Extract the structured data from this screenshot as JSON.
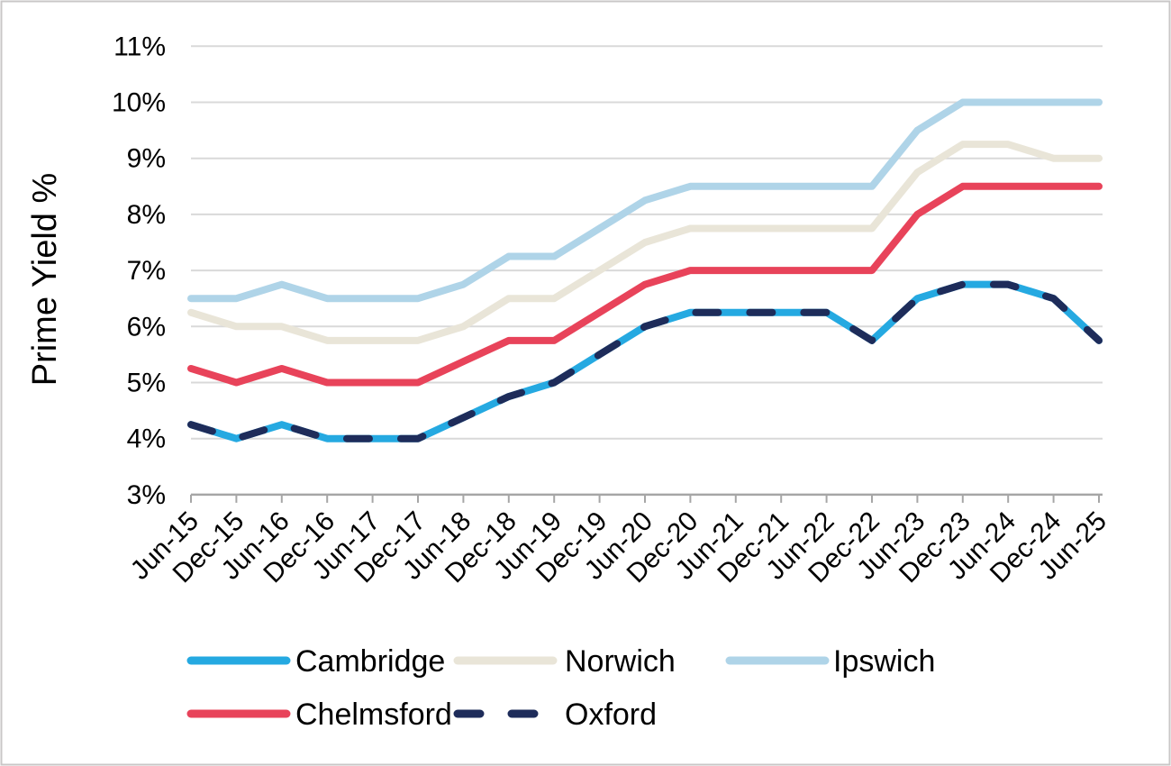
{
  "chart_data": {
    "type": "line",
    "title": "",
    "ylabel": "Prime Yield %",
    "xlabel": "",
    "ylim": [
      3,
      11
    ],
    "ytick_step": 1,
    "grid": "horizontal",
    "legend_position": "bottom",
    "categories": [
      "Jun-15",
      "Dec-15",
      "Jun-16",
      "Dec-16",
      "Jun-17",
      "Dec-17",
      "Jun-18",
      "Dec-18",
      "Jun-19",
      "Dec-19",
      "Jun-20",
      "Dec-20",
      "Jun-21",
      "Dec-21",
      "Jun-22",
      "Dec-22",
      "Jun-23",
      "Dec-23",
      "Jun-24",
      "Dec-24",
      "Jun-25"
    ],
    "yticks": [
      {
        "value": 3,
        "label": "3%"
      },
      {
        "value": 4,
        "label": "4%"
      },
      {
        "value": 5,
        "label": "5%"
      },
      {
        "value": 6,
        "label": "6%"
      },
      {
        "value": 7,
        "label": "7%"
      },
      {
        "value": 8,
        "label": "8%"
      },
      {
        "value": 9,
        "label": "9%"
      },
      {
        "value": 10,
        "label": "10%"
      },
      {
        "value": 11,
        "label": "11%"
      }
    ],
    "series": [
      {
        "name": "Cambridge",
        "color": "#25A9E1",
        "style": "solid",
        "values": [
          4.25,
          4,
          4.25,
          4,
          4,
          4,
          4.375,
          4.75,
          5,
          5.5,
          6,
          6.25,
          6.25,
          6.25,
          6.25,
          5.75,
          6.5,
          6.75,
          6.75,
          6.5,
          5.75
        ]
      },
      {
        "name": "Norwich",
        "color": "#E9E5D8",
        "style": "solid",
        "values": [
          6.25,
          6,
          6,
          5.75,
          5.75,
          5.75,
          6,
          6.5,
          6.5,
          7,
          7.5,
          7.75,
          7.75,
          7.75,
          7.75,
          7.75,
          8.75,
          9.25,
          9.25,
          9,
          9
        ]
      },
      {
        "name": "Ipswich",
        "color": "#AFD4E8",
        "style": "solid",
        "values": [
          6.5,
          6.5,
          6.75,
          6.5,
          6.5,
          6.5,
          6.75,
          7.25,
          7.25,
          7.75,
          8.25,
          8.5,
          8.5,
          8.5,
          8.5,
          8.5,
          9.5,
          10,
          10,
          10,
          10
        ]
      },
      {
        "name": "Chelmsford",
        "color": "#E8435A",
        "style": "solid",
        "values": [
          5.25,
          5,
          5.25,
          5,
          5,
          5,
          5.375,
          5.75,
          5.75,
          6.25,
          6.75,
          7,
          7,
          7,
          7,
          7,
          8,
          8.5,
          8.5,
          8.5,
          8.5
        ]
      },
      {
        "name": "Oxford",
        "color": "#1E2C5A",
        "style": "dashed",
        "values": [
          4.25,
          4,
          4.25,
          4,
          4,
          4,
          4.375,
          4.75,
          5,
          5.5,
          6,
          6.25,
          6.25,
          6.25,
          6.25,
          5.75,
          6.5,
          6.75,
          6.75,
          6.5,
          5.75
        ]
      }
    ],
    "legend_rows": [
      [
        0,
        1,
        2
      ],
      [
        3,
        4
      ]
    ]
  },
  "style_colors": {
    "gridline": "#D9D9D9",
    "axis": "#A6A6A6",
    "border": "#C9C7C7",
    "text": "#000000"
  }
}
